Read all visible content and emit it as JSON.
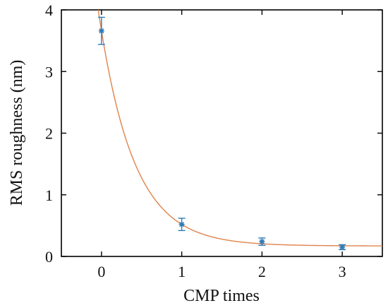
{
  "chart_data": {
    "type": "scatter",
    "xlabel": "CMP times",
    "ylabel": "RMS roughness (nm)",
    "xlim": [
      -0.5,
      3.5
    ],
    "ylim": [
      0,
      4
    ],
    "xticks": [
      0,
      1,
      2,
      3
    ],
    "yticks": [
      0,
      1,
      2,
      3,
      4
    ],
    "xtick_labels": [
      "0",
      "1",
      "2",
      "3"
    ],
    "ytick_labels": [
      "0",
      "1",
      "2",
      "3",
      "4"
    ],
    "grid": false,
    "series": [
      {
        "kind": "scatter-errorbar",
        "marker": "asterisk",
        "color": "#2e7bb6",
        "x": [
          0,
          1,
          2,
          3
        ],
        "y": [
          3.66,
          0.52,
          0.24,
          0.15
        ],
        "yerr": [
          0.22,
          0.1,
          0.06,
          0.04
        ]
      },
      {
        "kind": "fit-line",
        "color": "#e0834b",
        "model": "exponential decay",
        "a": 3.49,
        "k": 2.3,
        "c": 0.17
      }
    ]
  }
}
